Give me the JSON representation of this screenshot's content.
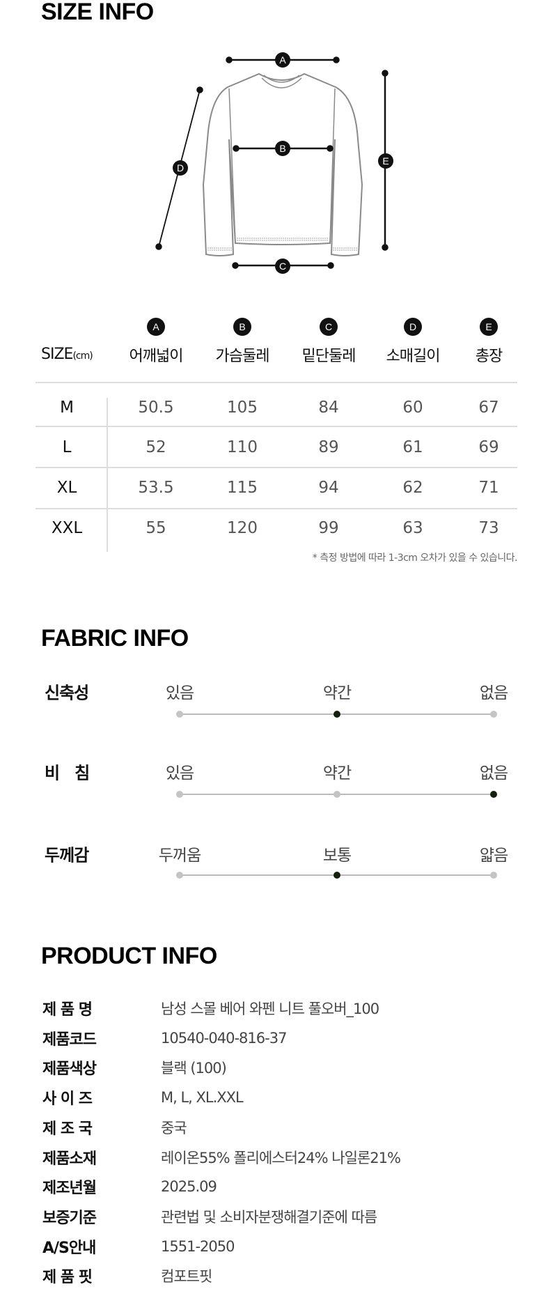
{
  "size_info": {
    "title": "SIZE INFO",
    "diagram_markers": [
      "A",
      "B",
      "C",
      "D",
      "E"
    ],
    "table": {
      "size_header": "SIZE",
      "unit": "(cm)",
      "columns": [
        {
          "marker": "A",
          "label": "어깨넓이"
        },
        {
          "marker": "B",
          "label": "가슴둘레"
        },
        {
          "marker": "C",
          "label": "밑단둘레"
        },
        {
          "marker": "D",
          "label": "소매길이"
        },
        {
          "marker": "E",
          "label": "총장"
        }
      ],
      "rows": [
        {
          "size": "M",
          "values": [
            "50.5",
            "105",
            "84",
            "60",
            "67"
          ]
        },
        {
          "size": "L",
          "values": [
            "52",
            "110",
            "89",
            "61",
            "69"
          ]
        },
        {
          "size": "XL",
          "values": [
            "53.5",
            "115",
            "94",
            "62",
            "71"
          ]
        },
        {
          "size": "XXL",
          "values": [
            "55",
            "120",
            "99",
            "63",
            "73"
          ]
        }
      ]
    },
    "note": "* 측정 방법에 따라  1-3cm 오차가 있을 수 있습니다."
  },
  "fabric_info": {
    "title": "FABRIC INFO",
    "selected_color": "#14200c",
    "unselected_color": "#c4c4c4",
    "rows": [
      {
        "label": "신축성",
        "options": [
          "있음",
          "약간",
          "없음"
        ],
        "selected": 1
      },
      {
        "label": "비   침",
        "options": [
          "있음",
          "약간",
          "없음"
        ],
        "selected": 2
      },
      {
        "label": "두께감",
        "options": [
          "두꺼움",
          "보통",
          "얇음"
        ],
        "selected": 1
      }
    ]
  },
  "product_info": {
    "title": "PRODUCT INFO",
    "rows": [
      {
        "label": "제 품 명",
        "value": "남성 스몰 베어 와펜 니트 풀오버_100"
      },
      {
        "label": "제품코드",
        "value": "10540-040-816-37"
      },
      {
        "label": "제품색상",
        "value": "블랙 (100)"
      },
      {
        "label": "사 이 즈",
        "value": "M, L, XL.XXL"
      },
      {
        "label": "제 조 국",
        "value": "중국"
      },
      {
        "label": "제품소재",
        "value": "레이온55% 폴리에스터24% 나일론21%"
      },
      {
        "label": "제조년월",
        "value": "2025.09"
      },
      {
        "label": "보증기준",
        "value": "관련법 및 소비자분쟁해결기준에 따름"
      },
      {
        "label": "A/S안내",
        "value": "1551-2050"
      },
      {
        "label": "제 품 핏",
        "value": "컴포트핏"
      }
    ]
  }
}
